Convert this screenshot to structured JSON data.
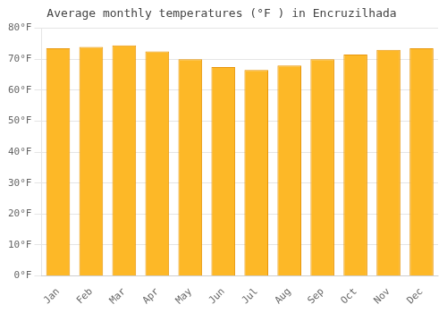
{
  "chart_data": {
    "type": "bar",
    "title": "Average monthly temperatures (°F ) in Encruzilhada",
    "categories": [
      "Jan",
      "Feb",
      "Mar",
      "Apr",
      "May",
      "Jun",
      "Jul",
      "Aug",
      "Sep",
      "Oct",
      "Nov",
      "Dec"
    ],
    "values": [
      73.5,
      74.0,
      74.5,
      72.5,
      70.0,
      67.5,
      66.5,
      68.0,
      70.0,
      71.5,
      73.0,
      73.5
    ],
    "color": "#FDB827",
    "ylim": [
      0,
      80
    ],
    "yticks": [
      {
        "value": 0,
        "label": "0°F"
      },
      {
        "value": 10,
        "label": "10°F"
      },
      {
        "value": 20,
        "label": "20°F"
      },
      {
        "value": 30,
        "label": "30°F"
      },
      {
        "value": 40,
        "label": "40°F"
      },
      {
        "value": 50,
        "label": "50°F"
      },
      {
        "value": 60,
        "label": "60°F"
      },
      {
        "value": 70,
        "label": "70°F"
      },
      {
        "value": 80,
        "label": "80°F"
      }
    ],
    "grid": true
  }
}
